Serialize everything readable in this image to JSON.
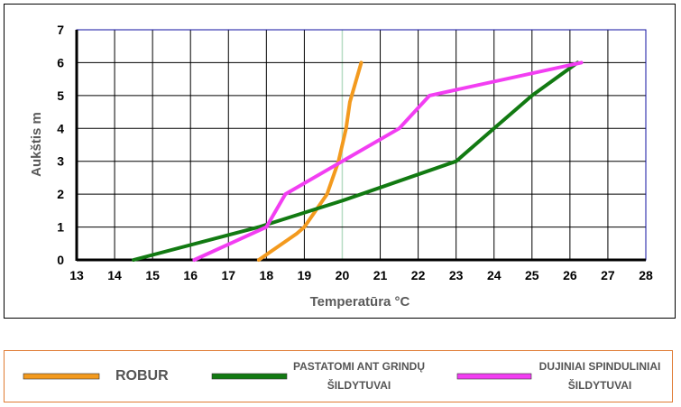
{
  "chart_data": {
    "type": "line",
    "title": "",
    "xlabel": "Temperatūra °C",
    "ylabel": "Aukštis m",
    "xlim": [
      13,
      28
    ],
    "ylim": [
      0,
      7
    ],
    "x_ticks": [
      "13",
      "14",
      "15",
      "16",
      "17",
      "18",
      "19",
      "20",
      "21",
      "22",
      "23",
      "24",
      "25",
      "26",
      "27",
      "28"
    ],
    "y_ticks": [
      "0",
      "1",
      "2",
      "3",
      "4",
      "5",
      "6",
      "7"
    ],
    "grid": true,
    "legend_position": "bottom",
    "highlight_x": 20,
    "series": [
      {
        "name": "ROBUR",
        "color": "#f39a1e",
        "points": [
          [
            17.8,
            0
          ],
          [
            18.8,
            0.8
          ],
          [
            19.0,
            1.0
          ],
          [
            19.3,
            1.5
          ],
          [
            19.6,
            2.0
          ],
          [
            19.9,
            3.0
          ],
          [
            20.1,
            4.0
          ],
          [
            20.2,
            4.8
          ],
          [
            20.5,
            6.0
          ]
        ]
      },
      {
        "name": [
          "PASTATOMI ANT GRINDŲ",
          "ŠILDYTUVAI"
        ],
        "color": "#127a12",
        "points": [
          [
            14.5,
            0
          ],
          [
            17.8,
            1.0
          ],
          [
            20.0,
            1.8
          ],
          [
            23.0,
            3.0
          ],
          [
            24.0,
            4.0
          ],
          [
            25.0,
            5.0
          ],
          [
            26.2,
            6.0
          ]
        ]
      },
      {
        "name": [
          "DUJINIAI SPINDULINIAI",
          "ŠILDYTUVAI"
        ],
        "color": "#f23ef2",
        "points": [
          [
            16.1,
            0
          ],
          [
            18.0,
            1.0
          ],
          [
            18.5,
            2.0
          ],
          [
            20.0,
            3.0
          ],
          [
            21.5,
            4.0
          ],
          [
            22.3,
            5.0
          ],
          [
            26.3,
            6.0
          ]
        ]
      }
    ]
  }
}
